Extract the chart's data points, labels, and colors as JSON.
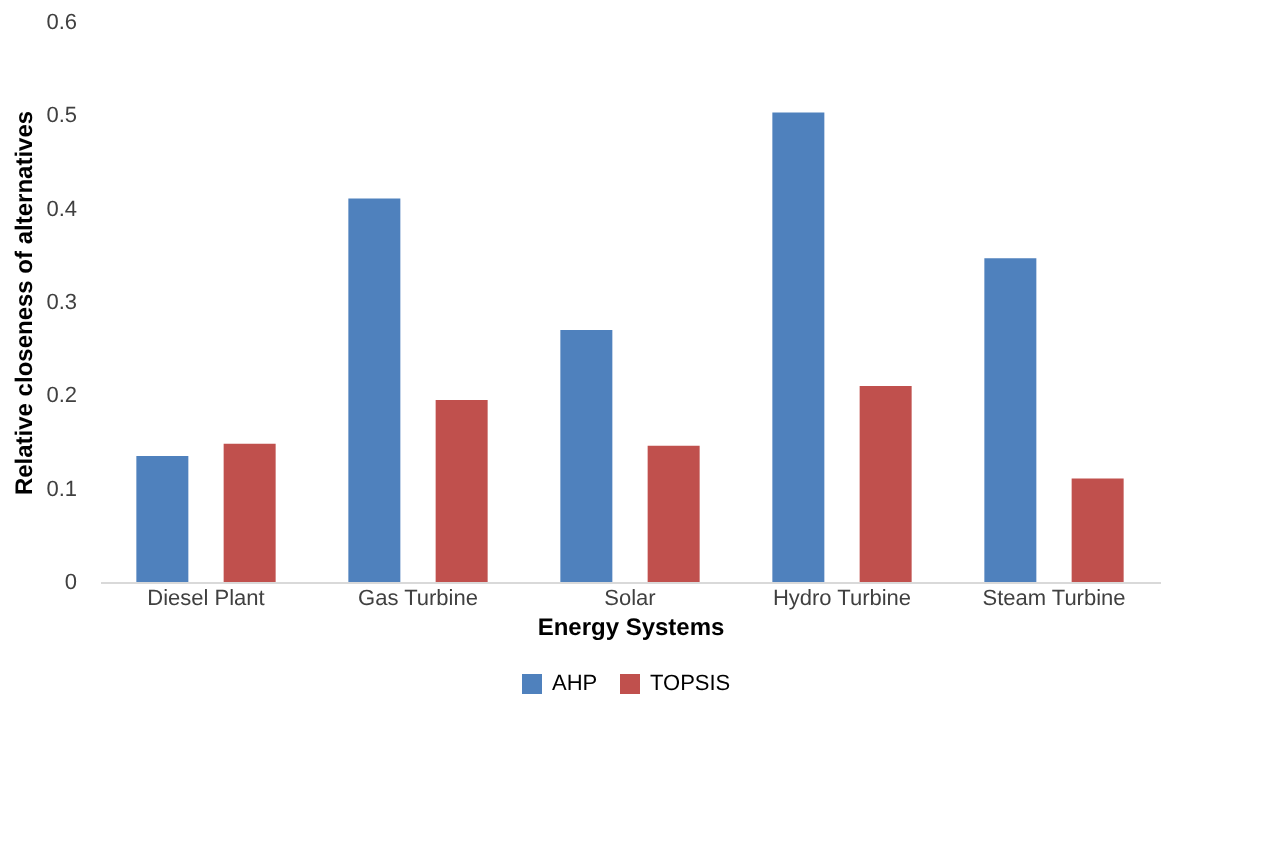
{
  "chart_data": {
    "type": "bar",
    "xlabel": "Energy Systems",
    "ylabel": "Relative closeness of alternatives",
    "categories": [
      "Diesel Plant",
      "Gas Turbine",
      "Solar",
      "Hydro Turbine",
      "Steam Turbine"
    ],
    "series": [
      {
        "name": "AHP",
        "color": "#4f81bd",
        "values": [
          0.135,
          0.411,
          0.27,
          0.503,
          0.347
        ]
      },
      {
        "name": "TOPSIS",
        "color": "#c0504d",
        "values": [
          0.148,
          0.195,
          0.146,
          0.21,
          0.111
        ]
      }
    ],
    "ylim": [
      0,
      0.6
    ],
    "yticks": [
      0,
      0.1,
      0.2,
      0.3,
      0.4,
      0.5,
      0.6
    ],
    "grid": false,
    "legend": "bottom"
  }
}
